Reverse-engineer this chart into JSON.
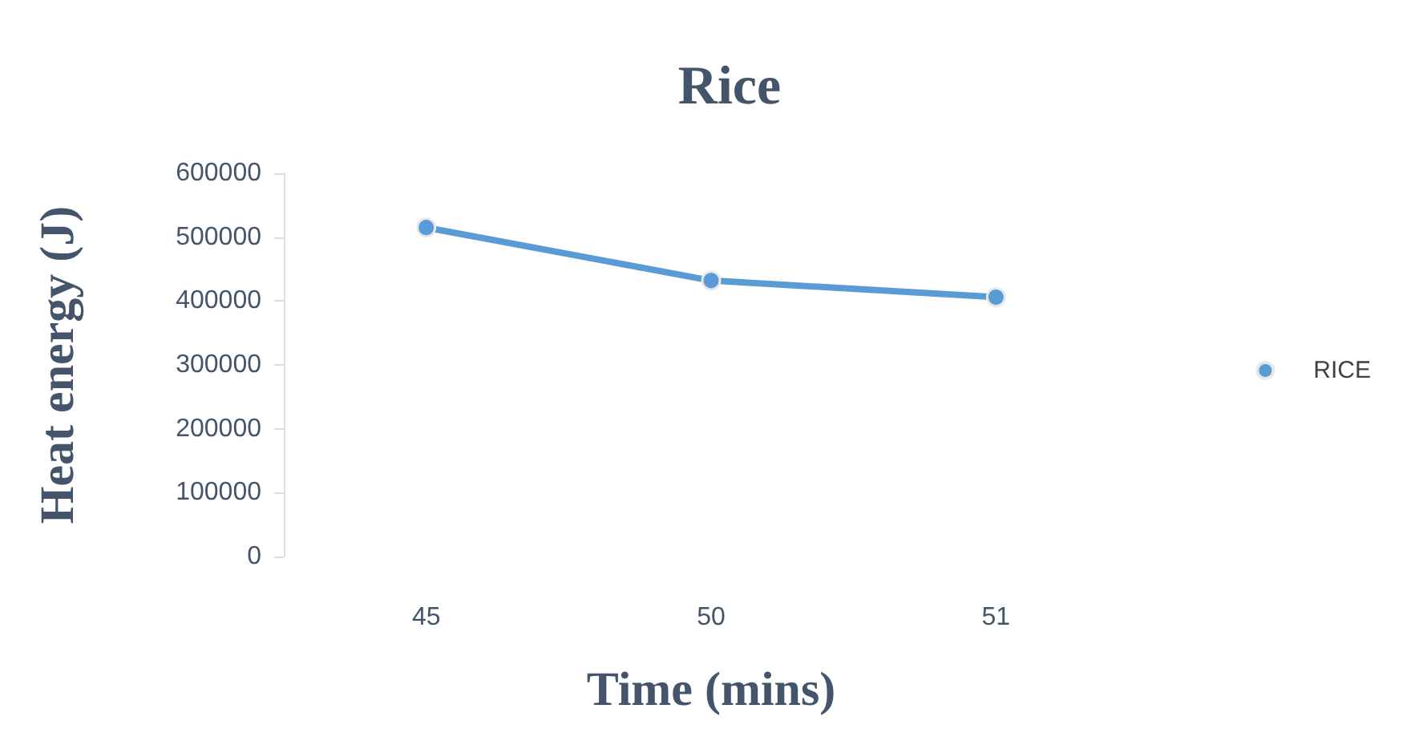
{
  "chart_data": {
    "type": "line",
    "title": "Rice",
    "xlabel": "Time (mins)",
    "ylabel": "Heat energy (J)",
    "categories": [
      "45",
      "50",
      "51"
    ],
    "series": [
      {
        "name": "RICE",
        "color": "#5b9bd5",
        "values": [
          515000,
          432000,
          406000
        ]
      }
    ],
    "ylim": [
      0,
      600000
    ],
    "yticks": [
      0,
      100000,
      200000,
      300000,
      400000,
      500000,
      600000
    ],
    "grid": false,
    "legend": "right",
    "marker": "circle",
    "line_style": "solid"
  }
}
